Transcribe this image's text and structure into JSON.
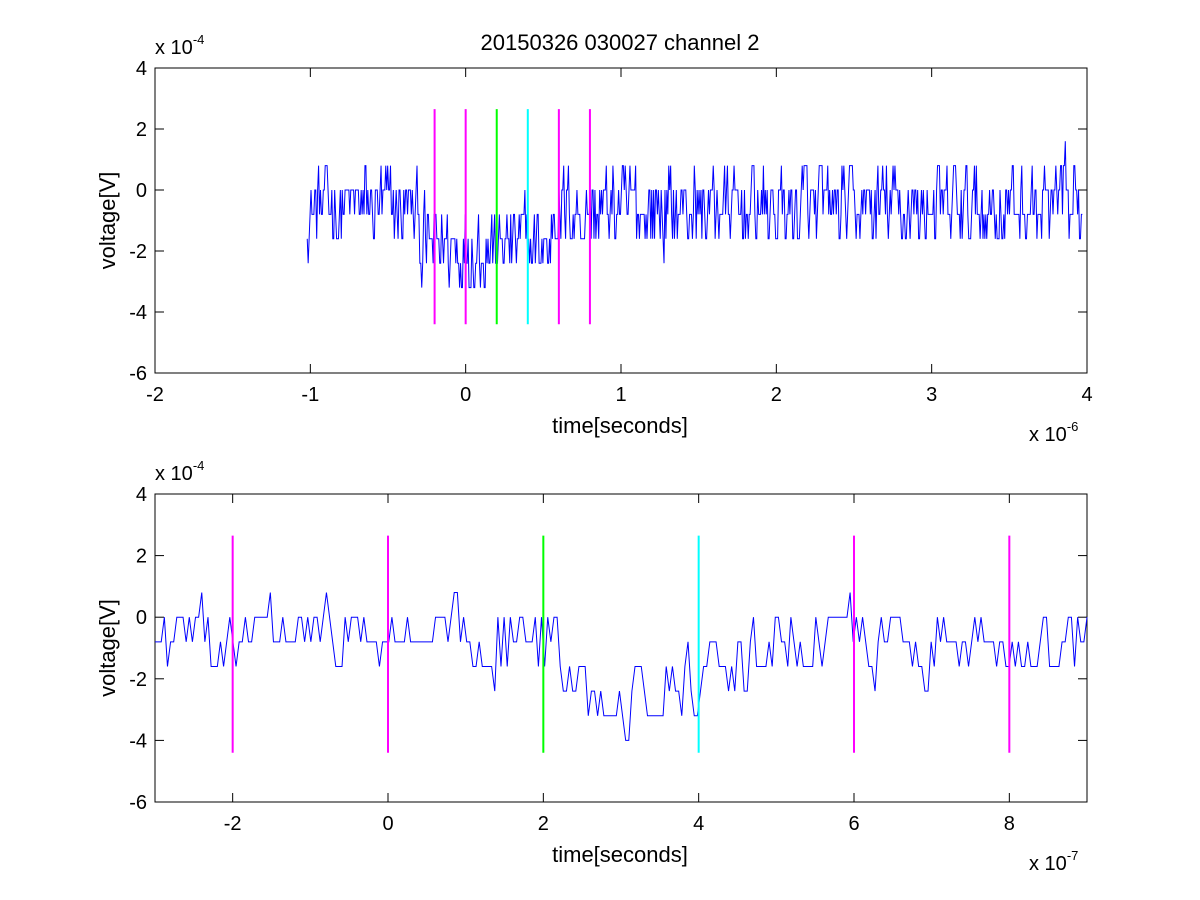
{
  "figure": {
    "title": "20150326 030027 channel 2"
  },
  "chart_data": [
    {
      "type": "line",
      "title": "20150326 030027 channel 2",
      "xlabel": "time[seconds]",
      "ylabel": "voltage[V]",
      "x_exponent_base": "x 10",
      "x_exponent_power": "-6",
      "y_exponent_base": "x 10",
      "y_exponent_power": "-4",
      "x_ticks": [
        -2,
        -1,
        0,
        1,
        2,
        3,
        4
      ],
      "y_ticks": [
        -6,
        -4,
        -2,
        0,
        2,
        4
      ],
      "xlim": [
        -2,
        4
      ],
      "ylim": [
        -6,
        4
      ],
      "grid": false,
      "series": [
        {
          "color": "#0000ff",
          "style": "noisy-signal",
          "x_range": [
            -1.02,
            3.97
          ],
          "sample_count": 820,
          "baseline": -0.6,
          "noise_amplitude": 1.3,
          "value_levels": [
            -4,
            -3.2,
            -2.4,
            -1.6,
            -0.8,
            0,
            0.8,
            1.6,
            2.4
          ],
          "dip_region": [
            -0.3,
            0.55
          ],
          "dip_depth": -1.2
        }
      ],
      "markers": [
        {
          "x": -0.2,
          "color": "#ff00ff",
          "y_range": [
            -4.4,
            2.65
          ]
        },
        {
          "x": 0.0,
          "color": "#ff00ff",
          "y_range": [
            -4.4,
            2.65
          ]
        },
        {
          "x": 0.2,
          "color": "#00ff00",
          "y_range": [
            -4.4,
            2.65
          ]
        },
        {
          "x": 0.4,
          "color": "#00ffff",
          "y_range": [
            -4.4,
            2.65
          ]
        },
        {
          "x": 0.6,
          "color": "#ff00ff",
          "y_range": [
            -4.4,
            2.65
          ]
        },
        {
          "x": 0.8,
          "color": "#ff00ff",
          "y_range": [
            -4.4,
            2.65
          ]
        }
      ]
    },
    {
      "type": "line",
      "title": "",
      "xlabel": "time[seconds]",
      "ylabel": "voltage[V]",
      "x_exponent_base": "x 10",
      "x_exponent_power": "-7",
      "y_exponent_base": "x 10",
      "y_exponent_power": "-4",
      "x_ticks": [
        -2,
        0,
        2,
        4,
        6,
        8
      ],
      "y_ticks": [
        -6,
        -4,
        -2,
        0,
        2,
        4
      ],
      "xlim": [
        -3,
        9
      ],
      "ylim": [
        -6,
        4
      ],
      "grid": false,
      "series": [
        {
          "color": "#0000ff",
          "style": "noisy-signal",
          "x_range": [
            -3,
            9
          ],
          "sample_count": 300,
          "baseline": -0.7,
          "noise_amplitude": 1.2,
          "value_levels": [
            -4,
            -3.2,
            -2.4,
            -1.6,
            -0.8,
            0,
            0.8,
            1.6,
            2.4
          ],
          "dip_region": [
            2.2,
            4.6
          ],
          "dip_depth": -1.5
        }
      ],
      "markers": [
        {
          "x": -2,
          "color": "#ff00ff",
          "y_range": [
            -4.4,
            2.65
          ]
        },
        {
          "x": 0,
          "color": "#ff00ff",
          "y_range": [
            -4.4,
            2.65
          ]
        },
        {
          "x": 2,
          "color": "#00ff00",
          "y_range": [
            -4.4,
            2.65
          ]
        },
        {
          "x": 4,
          "color": "#00ffff",
          "y_range": [
            -4.4,
            2.65
          ]
        },
        {
          "x": 6,
          "color": "#ff00ff",
          "y_range": [
            -4.4,
            2.65
          ]
        },
        {
          "x": 8,
          "color": "#ff00ff",
          "y_range": [
            -4.4,
            2.65
          ]
        }
      ]
    }
  ]
}
